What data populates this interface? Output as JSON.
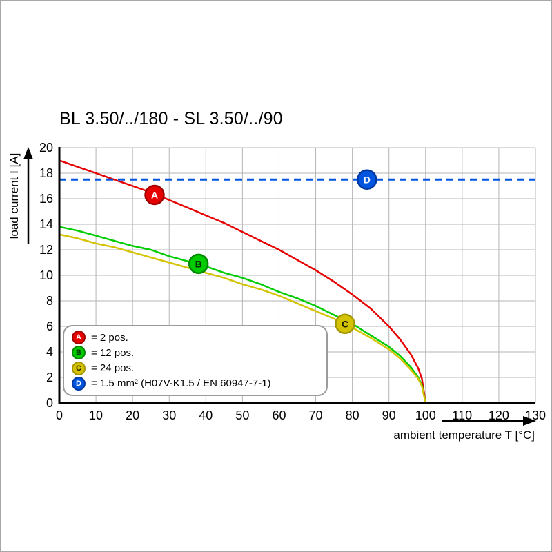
{
  "chart_data": {
    "type": "line",
    "title": "BL 3.50/../180 - SL 3.50/../90",
    "xlabel": "ambient temperature T [°C]",
    "ylabel": "load current I [A]",
    "xlim": [
      0,
      130
    ],
    "ylim": [
      0,
      20
    ],
    "x_ticks": [
      0,
      10,
      20,
      30,
      40,
      50,
      60,
      70,
      80,
      90,
      100,
      110,
      120,
      130
    ],
    "y_ticks": [
      0,
      2,
      4,
      6,
      8,
      10,
      12,
      14,
      16,
      18,
      20
    ],
    "grid": true,
    "grid_color": "#b5b5b5",
    "axis_color": "#000000",
    "series": [
      {
        "name": "A",
        "desc": "2 pos.",
        "color": "#e60000",
        "ring": "#a00000",
        "letter_color": "#ffffff",
        "style": "solid",
        "points": [
          [
            0,
            19.0
          ],
          [
            5,
            18.5
          ],
          [
            10,
            18.0
          ],
          [
            15,
            17.5
          ],
          [
            20,
            17.0
          ],
          [
            25,
            16.5
          ],
          [
            30,
            15.9
          ],
          [
            35,
            15.3
          ],
          [
            40,
            14.7
          ],
          [
            45,
            14.1
          ],
          [
            50,
            13.4
          ],
          [
            55,
            12.7
          ],
          [
            60,
            12.0
          ],
          [
            65,
            11.2
          ],
          [
            70,
            10.4
          ],
          [
            75,
            9.5
          ],
          [
            80,
            8.5
          ],
          [
            85,
            7.4
          ],
          [
            90,
            6.0
          ],
          [
            93,
            5.0
          ],
          [
            96,
            3.8
          ],
          [
            98,
            2.7
          ],
          [
            99,
            1.9
          ],
          [
            100,
            0
          ]
        ]
      },
      {
        "name": "B",
        "desc": "12 pos.",
        "color": "#00cc00",
        "ring": "#008800",
        "letter_color": "#003300",
        "style": "solid",
        "points": [
          [
            0,
            13.8
          ],
          [
            5,
            13.5
          ],
          [
            10,
            13.1
          ],
          [
            15,
            12.7
          ],
          [
            20,
            12.3
          ],
          [
            25,
            12.0
          ],
          [
            30,
            11.5
          ],
          [
            35,
            11.1
          ],
          [
            40,
            10.7
          ],
          [
            45,
            10.2
          ],
          [
            50,
            9.8
          ],
          [
            55,
            9.3
          ],
          [
            60,
            8.7
          ],
          [
            65,
            8.2
          ],
          [
            70,
            7.6
          ],
          [
            75,
            6.9
          ],
          [
            80,
            6.2
          ],
          [
            85,
            5.3
          ],
          [
            90,
            4.4
          ],
          [
            93,
            3.7
          ],
          [
            96,
            2.8
          ],
          [
            98,
            2.0
          ],
          [
            99,
            1.4
          ],
          [
            100,
            0
          ]
        ]
      },
      {
        "name": "C",
        "desc": "24 pos.",
        "color": "#d4c300",
        "ring": "#a39600",
        "letter_color": "#1a1a00",
        "style": "solid",
        "points": [
          [
            0,
            13.2
          ],
          [
            5,
            12.9
          ],
          [
            10,
            12.5
          ],
          [
            15,
            12.2
          ],
          [
            20,
            11.8
          ],
          [
            25,
            11.4
          ],
          [
            30,
            11.0
          ],
          [
            35,
            10.6
          ],
          [
            40,
            10.2
          ],
          [
            45,
            9.8
          ],
          [
            50,
            9.3
          ],
          [
            55,
            8.9
          ],
          [
            60,
            8.4
          ],
          [
            65,
            7.8
          ],
          [
            70,
            7.2
          ],
          [
            75,
            6.6
          ],
          [
            80,
            5.9
          ],
          [
            85,
            5.1
          ],
          [
            90,
            4.2
          ],
          [
            93,
            3.5
          ],
          [
            96,
            2.6
          ],
          [
            98,
            1.9
          ],
          [
            99,
            1.3
          ],
          [
            100,
            0
          ]
        ]
      },
      {
        "name": "D",
        "desc": "1.5 mm² (H07V-K1.5 / EN 60947-7-1)",
        "color": "#0055e0",
        "ring": "#0038a0",
        "letter_color": "#ffffff",
        "style": "dashed",
        "points": [
          [
            0,
            17.5
          ],
          [
            130,
            17.5
          ]
        ]
      }
    ],
    "markers": [
      {
        "letter": "A",
        "t": 26,
        "i": 16.3
      },
      {
        "letter": "B",
        "t": 38,
        "i": 10.9
      },
      {
        "letter": "C",
        "t": 78,
        "i": 6.2
      },
      {
        "letter": "D",
        "t": 84,
        "i": 17.5
      }
    ],
    "legend": [
      {
        "letter": "A",
        "label": "= 2 pos."
      },
      {
        "letter": "B",
        "label": "= 12 pos."
      },
      {
        "letter": "C",
        "label": "= 24 pos."
      },
      {
        "letter": "D",
        "label": "= 1.5 mm² (H07V-K1.5 / EN 60947-7-1)"
      }
    ]
  }
}
